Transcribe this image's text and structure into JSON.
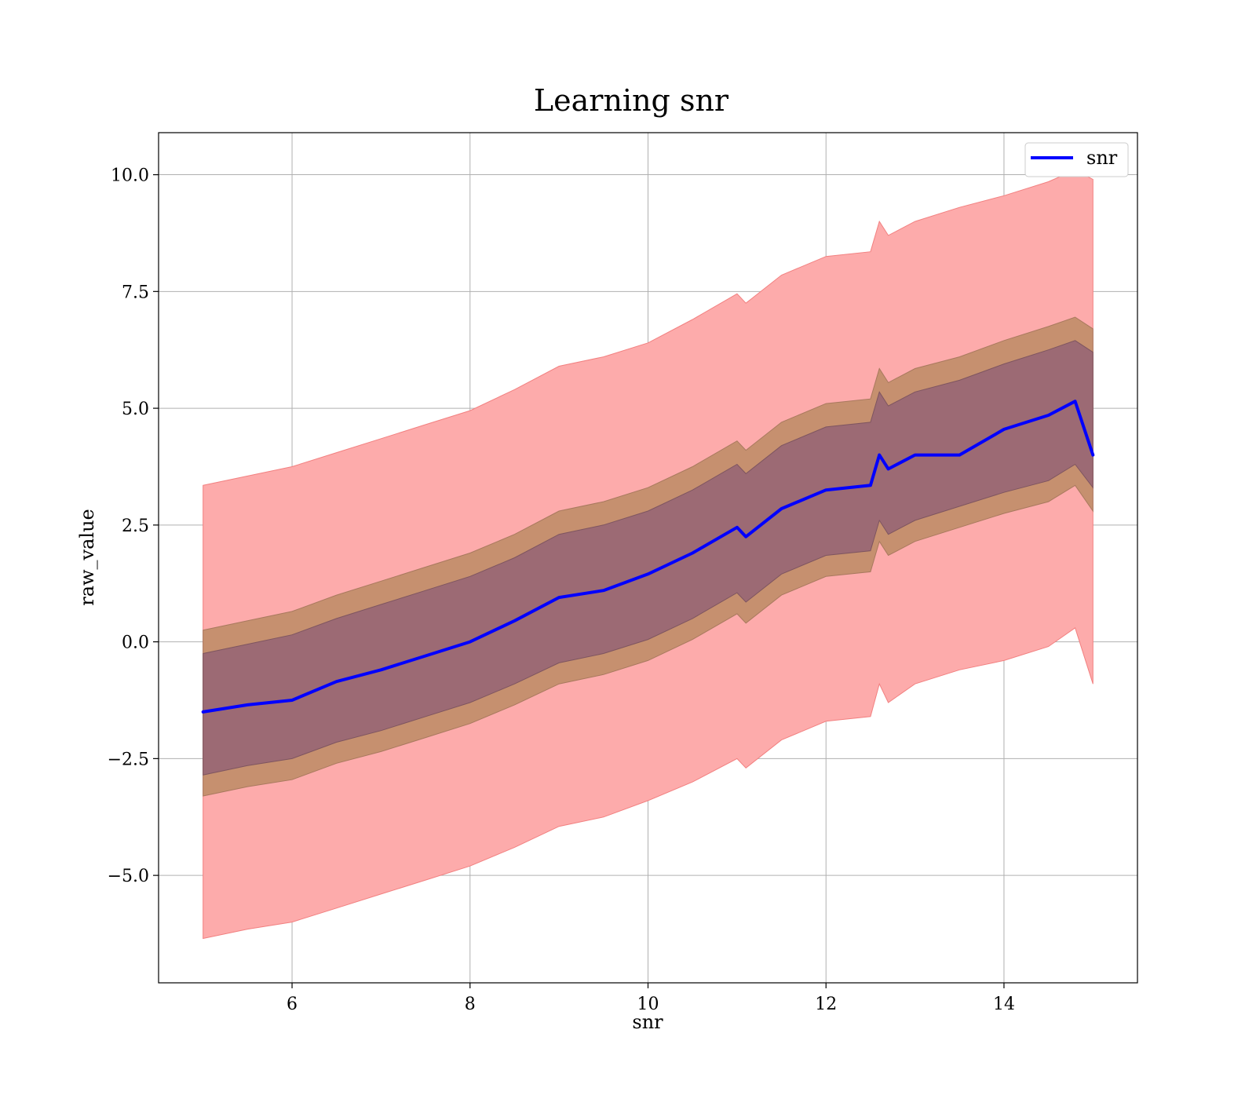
{
  "chart_data": {
    "type": "area",
    "title": "Learning snr",
    "xlabel": "snr",
    "ylabel": "raw_value",
    "xlim": [
      4.5,
      15.5
    ],
    "ylim": [
      -7.3,
      10.9
    ],
    "xticks": [
      6,
      8,
      10,
      12,
      14
    ],
    "yticks": [
      10.0,
      7.5,
      5.0,
      2.5,
      0.0,
      -2.5,
      -5.0
    ],
    "ytick_labels": [
      "10.0",
      "7.5",
      "5.0",
      "2.5",
      "0.0",
      "−2.5",
      "−5.0"
    ],
    "grid": true,
    "legend": {
      "position": "top-right",
      "entries": [
        "snr"
      ]
    },
    "colors": {
      "line": "#0000ff",
      "outer_band": "#fdabab",
      "middle_band": "#c6906f",
      "inner_band": "#9c6a74",
      "grid": "#b0b0b0"
    },
    "x": [
      5.0,
      5.5,
      6.0,
      6.5,
      7.0,
      7.5,
      8.0,
      8.5,
      9.0,
      9.5,
      10.0,
      10.5,
      11.0,
      11.1,
      11.5,
      12.0,
      12.5,
      12.6,
      12.7,
      13.0,
      13.5,
      14.0,
      14.5,
      14.8,
      15.0
    ],
    "series": [
      {
        "name": "snr",
        "values": [
          -1.5,
          -1.35,
          -1.25,
          -0.85,
          -0.6,
          -0.3,
          0.0,
          0.45,
          0.95,
          1.1,
          1.45,
          1.9,
          2.45,
          2.25,
          2.85,
          3.25,
          3.35,
          4.0,
          3.7,
          4.0,
          4.0,
          4.55,
          4.85,
          5.15,
          4.0
        ]
      }
    ],
    "bands": [
      {
        "upper": [
          3.35,
          3.55,
          3.75,
          4.05,
          4.35,
          4.65,
          4.95,
          5.4,
          5.9,
          6.1,
          6.4,
          6.9,
          7.45,
          7.25,
          7.85,
          8.25,
          8.35,
          9.0,
          8.7,
          9.0,
          9.3,
          9.55,
          9.85,
          10.1,
          9.9
        ],
        "lower": [
          -6.35,
          -6.15,
          -6.0,
          -5.7,
          -5.4,
          -5.1,
          -4.8,
          -4.4,
          -3.95,
          -3.75,
          -3.4,
          -3.0,
          -2.5,
          -2.7,
          -2.1,
          -1.7,
          -1.6,
          -0.9,
          -1.3,
          -0.9,
          -0.6,
          -0.4,
          -0.1,
          0.3,
          -0.9
        ]
      },
      {
        "upper": [
          0.25,
          0.45,
          0.65,
          1.0,
          1.3,
          1.6,
          1.9,
          2.3,
          2.8,
          3.0,
          3.3,
          3.75,
          4.3,
          4.1,
          4.7,
          5.1,
          5.2,
          5.85,
          5.55,
          5.85,
          6.1,
          6.45,
          6.75,
          6.95,
          6.7
        ],
        "lower": [
          -3.3,
          -3.1,
          -2.95,
          -2.6,
          -2.35,
          -2.05,
          -1.75,
          -1.35,
          -0.9,
          -0.7,
          -0.4,
          0.05,
          0.6,
          0.4,
          1.0,
          1.4,
          1.5,
          2.15,
          1.85,
          2.15,
          2.45,
          2.75,
          3.0,
          3.35,
          2.8
        ]
      },
      {
        "upper": [
          -0.25,
          -0.05,
          0.15,
          0.5,
          0.8,
          1.1,
          1.4,
          1.8,
          2.3,
          2.5,
          2.8,
          3.25,
          3.8,
          3.6,
          4.2,
          4.6,
          4.7,
          5.35,
          5.05,
          5.35,
          5.6,
          5.95,
          6.25,
          6.45,
          6.2
        ],
        "lower": [
          -2.85,
          -2.65,
          -2.5,
          -2.15,
          -1.9,
          -1.6,
          -1.3,
          -0.9,
          -0.45,
          -0.25,
          0.05,
          0.5,
          1.05,
          0.85,
          1.45,
          1.85,
          1.95,
          2.6,
          2.3,
          2.6,
          2.9,
          3.2,
          3.45,
          3.8,
          3.3
        ]
      }
    ]
  }
}
